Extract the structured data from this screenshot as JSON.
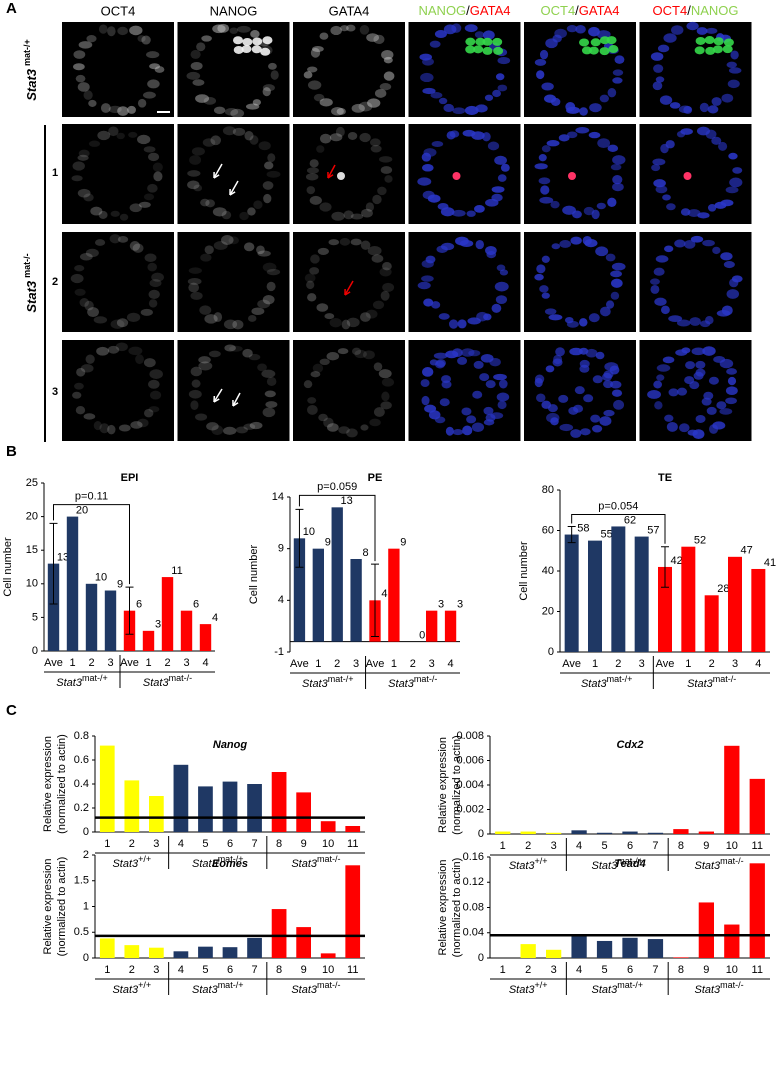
{
  "panel_labels": [
    "A",
    "B",
    "C"
  ],
  "panel_a": {
    "columns": [
      [
        "OCT4"
      ],
      [
        "NANOG"
      ],
      [
        "GATA4"
      ],
      [
        "NANOG",
        "/",
        "GATA4"
      ],
      [
        "OCT4",
        "/",
        "GATA4"
      ],
      [
        "OCT4",
        "/",
        "NANOG"
      ]
    ],
    "genotypes": [
      {
        "name": "Stat3",
        "sup": "mat-/+"
      },
      {
        "name": "Stat3",
        "sup": "mat-/-"
      }
    ],
    "rows": [
      "1",
      "2",
      "3"
    ]
  },
  "chart_data": [
    {
      "type": "bar",
      "title": "EPI",
      "ylabel": "Cell number",
      "categories": [
        "Ave",
        "1",
        "2",
        "3",
        "Ave",
        "1",
        "2",
        "3",
        "4"
      ],
      "values": [
        13,
        20,
        10,
        9,
        6,
        3,
        11,
        6,
        4
      ],
      "errors": [
        6,
        null,
        null,
        null,
        3.5,
        null,
        null,
        null,
        null
      ],
      "colors": [
        "#1f3864",
        "#1f3864",
        "#1f3864",
        "#1f3864",
        "#ff0000",
        "#ff0000",
        "#ff0000",
        "#ff0000",
        "#ff0000"
      ],
      "data_labels": true,
      "annotation": "p=0.11",
      "groups": [
        {
          "name": "Stat3",
          "sup": "mat-/+"
        },
        {
          "name": "Stat3",
          "sup": "mat-/-"
        }
      ],
      "ylim": [
        0,
        25
      ],
      "yticks": [
        0,
        5,
        10,
        15,
        20,
        25
      ]
    },
    {
      "type": "bar",
      "title": "PE",
      "ylabel": "Cell number",
      "categories": [
        "Ave",
        "1",
        "2",
        "3",
        "Ave",
        "1",
        "2",
        "3",
        "4"
      ],
      "values": [
        10,
        9,
        13,
        8,
        4,
        9,
        0,
        3,
        3
      ],
      "errors": [
        2.8,
        null,
        null,
        null,
        3.5,
        null,
        null,
        null,
        null
      ],
      "colors": [
        "#1f3864",
        "#1f3864",
        "#1f3864",
        "#1f3864",
        "#ff0000",
        "#ff0000",
        "#ff0000",
        "#ff0000",
        "#ff0000"
      ],
      "data_labels": true,
      "annotation": "p=0.059",
      "groups": [
        {
          "name": "Stat3",
          "sup": "mat-/+"
        },
        {
          "name": "Stat3",
          "sup": "mat-/-"
        }
      ],
      "ylim": [
        -1,
        14
      ],
      "yticks": [
        -1,
        4,
        9,
        14
      ]
    },
    {
      "type": "bar",
      "title": "TE",
      "ylabel": "Cell number",
      "categories": [
        "Ave",
        "1",
        "2",
        "3",
        "Ave",
        "1",
        "2",
        "3",
        "4"
      ],
      "values": [
        58,
        55,
        62,
        57,
        42,
        52,
        28,
        47,
        41
      ],
      "errors": [
        4,
        null,
        null,
        null,
        10,
        null,
        null,
        null,
        null
      ],
      "colors": [
        "#1f3864",
        "#1f3864",
        "#1f3864",
        "#1f3864",
        "#ff0000",
        "#ff0000",
        "#ff0000",
        "#ff0000",
        "#ff0000"
      ],
      "data_labels": true,
      "annotation": "p=0.054",
      "groups": [
        {
          "name": "Stat3",
          "sup": "mat-/+"
        },
        {
          "name": "Stat3",
          "sup": "mat-/-"
        }
      ],
      "ylim": [
        0,
        80
      ],
      "yticks": [
        0,
        20,
        40,
        60,
        80
      ]
    },
    {
      "type": "bar",
      "title": "Nanog",
      "italic_title": true,
      "ylabel": [
        "Relative expression",
        "(normalized to actin)"
      ],
      "categories": [
        "1",
        "2",
        "3",
        "4",
        "5",
        "6",
        "7",
        "8",
        "9",
        "10",
        "11"
      ],
      "values": [
        0.72,
        0.43,
        0.3,
        0.56,
        0.38,
        0.42,
        0.4,
        0.5,
        0.33,
        0.09,
        0.05
      ],
      "colors": [
        "#ffff00",
        "#ffff00",
        "#ffff00",
        "#1f3864",
        "#1f3864",
        "#1f3864",
        "#1f3864",
        "#ff0000",
        "#ff0000",
        "#ff0000",
        "#ff0000"
      ],
      "threshold": 0.12,
      "groups": [
        {
          "name": "Stat3",
          "sup": "+/+"
        },
        {
          "name": "Stat3",
          "sup": "mat-/+"
        },
        {
          "name": "Stat3",
          "sup": "mat-/-"
        }
      ],
      "ylim": [
        0,
        0.8
      ],
      "yticks": [
        0,
        0.2,
        0.4,
        0.6,
        0.8
      ]
    },
    {
      "type": "bar",
      "title": "Cdx2",
      "italic_title": true,
      "ylabel": [
        "Relative expression",
        "(normalized to actin)"
      ],
      "categories": [
        "1",
        "2",
        "3",
        "4",
        "5",
        "6",
        "7",
        "8",
        "9",
        "10",
        "11"
      ],
      "values": [
        0.0002,
        0.0002,
        0.0001,
        0.0003,
        0.0001,
        0.0002,
        0.0001,
        0.0004,
        0.0002,
        0.0072,
        0.0045
      ],
      "colors": [
        "#ffff00",
        "#ffff00",
        "#ffff00",
        "#1f3864",
        "#1f3864",
        "#1f3864",
        "#1f3864",
        "#ff0000",
        "#ff0000",
        "#ff0000",
        "#ff0000"
      ],
      "groups": [
        {
          "name": "Stat3",
          "sup": "+/+"
        },
        {
          "name": "Stat3",
          "sup": "mat-/+"
        },
        {
          "name": "Stat3",
          "sup": "mat-/-"
        }
      ],
      "ylim": [
        0,
        0.008
      ],
      "yticks": [
        0,
        0.002,
        0.004,
        0.006,
        0.008
      ]
    },
    {
      "type": "bar",
      "title": "Eomes",
      "italic_title": true,
      "ylabel": [
        "Relative expression",
        "(normalized to actin)"
      ],
      "categories": [
        "1",
        "2",
        "3",
        "4",
        "5",
        "6",
        "7",
        "8",
        "9",
        "10",
        "11"
      ],
      "values": [
        0.38,
        0.25,
        0.2,
        0.13,
        0.22,
        0.21,
        0.39,
        0.95,
        0.6,
        0.09,
        1.8
      ],
      "colors": [
        "#ffff00",
        "#ffff00",
        "#ffff00",
        "#1f3864",
        "#1f3864",
        "#1f3864",
        "#1f3864",
        "#ff0000",
        "#ff0000",
        "#ff0000",
        "#ff0000"
      ],
      "threshold": 0.43,
      "groups": [
        {
          "name": "Stat3",
          "sup": "+/+"
        },
        {
          "name": "Stat3",
          "sup": "mat-/+"
        },
        {
          "name": "Stat3",
          "sup": "mat-/-"
        }
      ],
      "ylim": [
        0,
        2
      ],
      "yticks": [
        0,
        0.5,
        1,
        1.5,
        2
      ]
    },
    {
      "type": "bar",
      "title": "Tead4",
      "italic_title": true,
      "ylabel": [
        "Relative expression",
        "(normalized to actin)"
      ],
      "categories": [
        "1",
        "2",
        "3",
        "4",
        "5",
        "6",
        "7",
        "8",
        "9",
        "10",
        "11"
      ],
      "values": [
        0,
        0.022,
        0.013,
        0.035,
        0.027,
        0.032,
        0.03,
        0.001,
        0.088,
        0.053,
        0.15
      ],
      "colors": [
        "#ffff00",
        "#ffff00",
        "#ffff00",
        "#1f3864",
        "#1f3864",
        "#1f3864",
        "#1f3864",
        "#ff0000",
        "#ff0000",
        "#ff0000",
        "#ff0000"
      ],
      "threshold": 0.036,
      "groups": [
        {
          "name": "Stat3",
          "sup": "+/+"
        },
        {
          "name": "Stat3",
          "sup": "mat-/+"
        },
        {
          "name": "Stat3",
          "sup": "mat-/-"
        }
      ],
      "ylim": [
        0,
        0.16
      ],
      "yticks": [
        0,
        0.04,
        0.08,
        0.12,
        0.16
      ]
    }
  ]
}
